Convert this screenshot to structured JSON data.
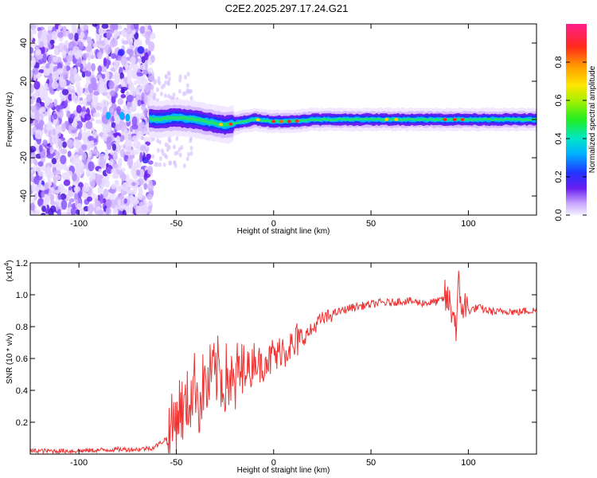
{
  "title": "C2E2.2025.297.17.24.G21",
  "chart_data": [
    {
      "type": "heatmap",
      "xlabel": "Height of straight line (km)",
      "ylabel": "Frequency (Hz)",
      "xlim": [
        -125,
        135
      ],
      "ylim": [
        -50,
        50
      ],
      "xticks": [
        -100,
        -50,
        0,
        50,
        100
      ],
      "yticks": [
        -40,
        -20,
        0,
        20,
        40
      ],
      "colorbar": {
        "label": "Normalized spectral amplitude",
        "range": [
          0,
          1
        ],
        "ticks": [
          "0.0",
          "0.2",
          "0.4",
          "0.6",
          "0.8"
        ]
      },
      "ridge": {
        "x": [
          -75,
          -60,
          -50,
          -40,
          -30,
          -25,
          -20,
          -15,
          -10,
          0,
          10,
          20,
          40,
          60,
          80,
          90,
          100,
          135
        ],
        "frequency_hz": [
          2,
          0,
          1,
          0,
          -2,
          -3,
          -2,
          -1,
          0,
          -1,
          -1,
          0,
          0,
          0,
          0,
          0,
          0,
          0
        ]
      },
      "noise_region_x": [
        -125,
        -62
      ]
    },
    {
      "type": "line",
      "xlabel": "Height of straight line (km)",
      "ylabel": "SNR (10 * v/v)",
      "yscale_label": "(x10",
      "yscale_exponent": "4",
      "xlim": [
        -125,
        135
      ],
      "ylim": [
        0,
        1.2
      ],
      "xticks": [
        -100,
        -50,
        0,
        50,
        100
      ],
      "yticks": [
        "0.2",
        "0.4",
        "0.6",
        "0.8",
        "1.0",
        "1.2"
      ],
      "ytick_values": [
        0.2,
        0.4,
        0.6,
        0.8,
        1.0,
        1.2
      ],
      "color": "#ee3333",
      "series": [
        {
          "name": "SNR",
          "x": [
            -125,
            -100,
            -80,
            -70,
            -62,
            -58,
            -55,
            -52,
            -50,
            -48,
            -46,
            -44,
            -42,
            -40,
            -38,
            -36,
            -34,
            -32,
            -30,
            -28,
            -26,
            -24,
            -22,
            -20,
            -18,
            -16,
            -14,
            -12,
            -10,
            -8,
            -6,
            -4,
            -2,
            0,
            2,
            4,
            6,
            8,
            10,
            12,
            14,
            16,
            18,
            20,
            22,
            24,
            26,
            28,
            30,
            35,
            40,
            45,
            50,
            55,
            60,
            65,
            70,
            75,
            80,
            85,
            88,
            90,
            92,
            94,
            95,
            96,
            98,
            100,
            105,
            110,
            115,
            120,
            125,
            130,
            135
          ],
          "values": [
            0.02,
            0.02,
            0.03,
            0.03,
            0.04,
            0.07,
            0.1,
            0.17,
            0.24,
            0.3,
            0.26,
            0.33,
            0.38,
            0.46,
            0.3,
            0.45,
            0.4,
            0.52,
            0.48,
            0.55,
            0.42,
            0.5,
            0.45,
            0.4,
            0.55,
            0.48,
            0.58,
            0.5,
            0.62,
            0.57,
            0.55,
            0.62,
            0.58,
            0.64,
            0.6,
            0.68,
            0.65,
            0.7,
            0.64,
            0.72,
            0.7,
            0.74,
            0.76,
            0.78,
            0.82,
            0.84,
            0.85,
            0.86,
            0.88,
            0.9,
            0.92,
            0.93,
            0.94,
            0.95,
            0.95,
            0.96,
            0.96,
            0.95,
            0.95,
            0.96,
            0.98,
            0.95,
            0.9,
            0.8,
            1.05,
            0.95,
            0.93,
            0.9,
            0.92,
            0.9,
            0.89,
            0.9,
            0.89,
            0.9,
            0.9
          ]
        }
      ]
    }
  ]
}
